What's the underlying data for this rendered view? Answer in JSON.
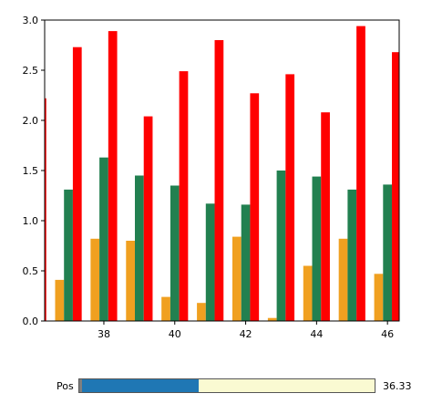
{
  "chart_data": {
    "type": "bar",
    "xlim": [
      36.33,
      46.33
    ],
    "ylim": [
      0,
      3.0
    ],
    "x_ticks": [
      "38",
      "40",
      "42",
      "44",
      "46"
    ],
    "y_ticks": [
      "0.0",
      "0.5",
      "1.0",
      "1.5",
      "2.0",
      "2.5",
      "3.0"
    ],
    "series": [
      {
        "color": "#f0a020",
        "values": [
          0.41,
          0.82,
          0.8,
          0.24,
          0.18,
          0.84,
          0.03,
          0.55,
          0.82,
          0.47
        ]
      },
      {
        "color": "#228050",
        "values": [
          1.31,
          1.63,
          1.45,
          1.35,
          1.17,
          1.16,
          1.5,
          1.44,
          1.31,
          1.36
        ]
      },
      {
        "color": "#ff0000",
        "values": [
          2.73,
          2.89,
          2.04,
          2.49,
          2.8,
          2.27,
          2.46,
          2.08,
          2.94,
          2.68
        ]
      }
    ],
    "x": [
      37,
      38,
      39,
      40,
      41,
      42,
      43,
      44,
      45,
      46
    ],
    "partial_left_bar": {
      "color": "#ff0000",
      "value": 2.22
    },
    "grid": false,
    "legend": "none"
  },
  "slider": {
    "label": "Pos",
    "value_text": "36.33",
    "fill_fraction": 0.405
  }
}
